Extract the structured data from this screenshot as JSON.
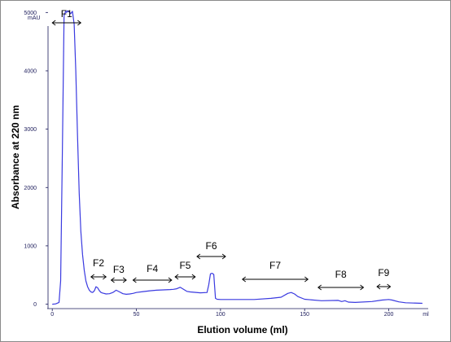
{
  "chart_data": {
    "type": "line",
    "xlabel": "Elution volume (ml)",
    "ylabel": "Absorbance at 220 nm",
    "x_unit": "ml",
    "y_unit": "mAU",
    "xlim": [
      -3,
      237
    ],
    "ylim": [
      -90,
      5200
    ],
    "x_ticks": [
      0,
      50,
      100,
      150,
      200
    ],
    "y_ticks": [
      0,
      1000,
      2000,
      3000,
      4000,
      5000
    ],
    "grid": false,
    "line_color": "#3a3ae0",
    "series": [
      {
        "x": [
          0,
          2,
          4,
          5,
          6,
          7,
          8,
          8.5,
          9,
          10,
          11,
          12,
          13,
          14,
          15,
          16,
          17,
          18,
          19,
          20,
          21,
          22,
          23,
          24,
          25,
          26,
          27,
          28,
          29,
          30,
          32,
          34,
          36,
          38,
          40,
          42,
          44,
          46,
          48,
          50,
          54,
          58,
          62,
          66,
          70,
          72,
          74,
          76,
          78,
          80,
          82,
          84,
          88,
          92,
          93,
          94,
          95,
          96,
          97,
          98,
          100,
          110,
          120,
          130,
          136,
          140,
          142,
          144,
          146,
          150,
          160,
          170,
          172,
          174,
          176,
          180,
          190,
          196,
          200,
          202,
          206,
          210,
          220
        ],
        "y": [
          0,
          5,
          30,
          400,
          2600,
          4950,
          5020,
          5000,
          5030,
          5010,
          4980,
          5020,
          4800,
          4000,
          2900,
          1900,
          1250,
          850,
          580,
          400,
          300,
          240,
          210,
          200,
          230,
          300,
          280,
          230,
          200,
          190,
          175,
          180,
          200,
          240,
          210,
          180,
          170,
          175,
          185,
          200,
          215,
          230,
          240,
          245,
          250,
          255,
          265,
          290,
          255,
          220,
          210,
          205,
          195,
          200,
          330,
          520,
          530,
          510,
          100,
          85,
          80,
          80,
          80,
          100,
          120,
          185,
          200,
          175,
          130,
          85,
          60,
          65,
          45,
          60,
          35,
          30,
          45,
          70,
          80,
          70,
          40,
          25,
          15
        ]
      }
    ],
    "fractions": [
      {
        "label": "F1",
        "start": 0,
        "end": 17
      },
      {
        "label": "F2",
        "start": 23,
        "end": 32
      },
      {
        "label": "F3",
        "start": 35,
        "end": 44
      },
      {
        "label": "F4",
        "start": 48,
        "end": 71
      },
      {
        "label": "F5",
        "start": 73,
        "end": 85
      },
      {
        "label": "F6",
        "start": 86,
        "end": 103
      },
      {
        "label": "F7",
        "start": 113,
        "end": 152
      },
      {
        "label": "F8",
        "start": 158,
        "end": 185
      },
      {
        "label": "F9",
        "start": 193,
        "end": 201
      }
    ]
  }
}
